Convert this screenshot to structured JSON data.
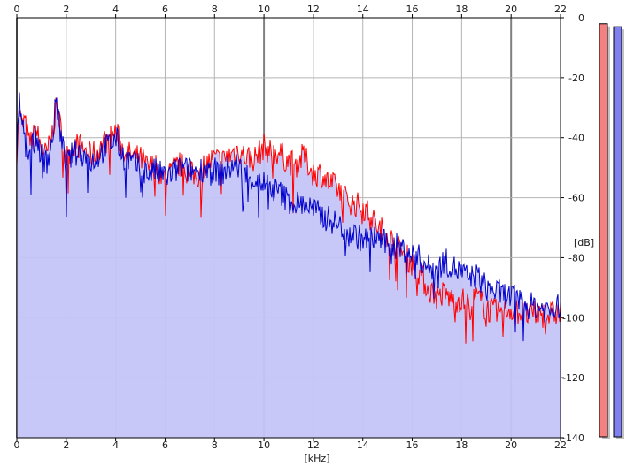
{
  "chart_data": {
    "type": "line",
    "title": "",
    "xlabel": "[kHz]",
    "ylabel": "[dB]",
    "xlim": [
      0,
      22
    ],
    "ylim": [
      -140,
      0
    ],
    "x_ticks": [
      "0",
      "2",
      "4",
      "6",
      "8",
      "10",
      "12",
      "14",
      "16",
      "18",
      "20",
      "22"
    ],
    "y_ticks": [
      "0",
      "-20",
      "-40",
      "-60",
      "-80",
      "-100",
      "-120",
      "-140"
    ],
    "grid": true,
    "fill_color": "#c4c4f8",
    "series": [
      {
        "color": "#ff0000",
        "x": [
          0,
          0.1,
          0.2,
          0.3,
          0.5,
          0.8,
          1.0,
          1.2,
          1.4,
          1.6,
          1.8,
          2.0,
          2.3,
          2.6,
          3.0,
          3.3,
          3.6,
          3.8,
          4.0,
          4.3,
          4.6,
          5.0,
          5.3,
          5.6,
          6.0,
          6.3,
          6.6,
          7.0,
          7.3,
          7.6,
          8.0,
          8.3,
          8.6,
          8.9,
          9.2,
          9.6,
          10.0,
          10.3,
          10.6,
          11.0,
          11.3,
          11.6,
          12.0,
          12.3,
          12.6,
          13.0,
          13.3,
          13.6,
          14.0,
          14.3,
          14.6,
          15.0,
          15.3,
          15.6,
          16.0,
          16.3,
          16.6,
          17.0,
          17.3,
          17.6,
          18.0,
          18.3,
          18.6,
          19.0,
          19.3,
          19.6,
          20.0,
          20.3,
          20.6,
          21.0,
          21.3,
          21.6,
          22.0
        ],
        "values": [
          -45,
          -30,
          -37,
          -34,
          -42,
          -38,
          -44,
          -46,
          -40,
          -30,
          -38,
          -47,
          -42,
          -43,
          -46,
          -44,
          -41,
          -40,
          -38,
          -44,
          -46,
          -47,
          -50,
          -49,
          -54,
          -51,
          -49,
          -52,
          -53,
          -49,
          -47,
          -48,
          -46,
          -44,
          -46,
          -47,
          -43,
          -45,
          -45,
          -48,
          -49,
          -46,
          -52,
          -52,
          -55,
          -57,
          -60,
          -62,
          -63,
          -66,
          -70,
          -72,
          -76,
          -78,
          -82,
          -85,
          -90,
          -93,
          -92,
          -94,
          -94,
          -96,
          -93,
          -97,
          -98,
          -98,
          -97,
          -98,
          -99,
          -99,
          -99,
          -99,
          -98
        ]
      },
      {
        "color": "#0000cc",
        "x": [
          0,
          0.1,
          0.2,
          0.3,
          0.5,
          0.8,
          1.0,
          1.2,
          1.4,
          1.6,
          1.8,
          2.0,
          2.3,
          2.6,
          3.0,
          3.3,
          3.6,
          3.8,
          4.0,
          4.3,
          4.6,
          5.0,
          5.3,
          5.6,
          6.0,
          6.3,
          6.6,
          7.0,
          7.3,
          7.6,
          8.0,
          8.3,
          8.6,
          8.9,
          9.2,
          9.6,
          10.0,
          10.3,
          10.6,
          11.0,
          11.3,
          11.6,
          12.0,
          12.3,
          12.6,
          13.0,
          13.3,
          13.6,
          14.0,
          14.3,
          14.6,
          15.0,
          15.3,
          15.6,
          16.0,
          16.3,
          16.6,
          17.0,
          17.3,
          17.6,
          18.0,
          18.3,
          18.6,
          19.0,
          19.3,
          19.6,
          20.0,
          20.3,
          20.6,
          21.0,
          21.3,
          21.6,
          22.0
        ],
        "values": [
          -46,
          -25,
          -39,
          -36,
          -44,
          -40,
          -46,
          -48,
          -43,
          -27,
          -41,
          -49,
          -45,
          -45,
          -48,
          -46,
          -43,
          -42,
          -40,
          -46,
          -48,
          -50,
          -52,
          -51,
          -53,
          -52,
          -50,
          -51,
          -51,
          -50,
          -51,
          -52,
          -50,
          -49,
          -52,
          -54,
          -55,
          -57,
          -58,
          -61,
          -62,
          -62,
          -64,
          -66,
          -67,
          -69,
          -71,
          -72,
          -74,
          -74,
          -73,
          -76,
          -76,
          -77,
          -79,
          -80,
          -83,
          -84,
          -81,
          -83,
          -85,
          -87,
          -86,
          -90,
          -91,
          -92,
          -93,
          -94,
          -96,
          -96,
          -97,
          -98,
          -96
        ]
      }
    ]
  },
  "meters": [
    {
      "color": "#f48080",
      "level_db": -2
    },
    {
      "color": "#8080f0",
      "level_db": -3
    }
  ]
}
